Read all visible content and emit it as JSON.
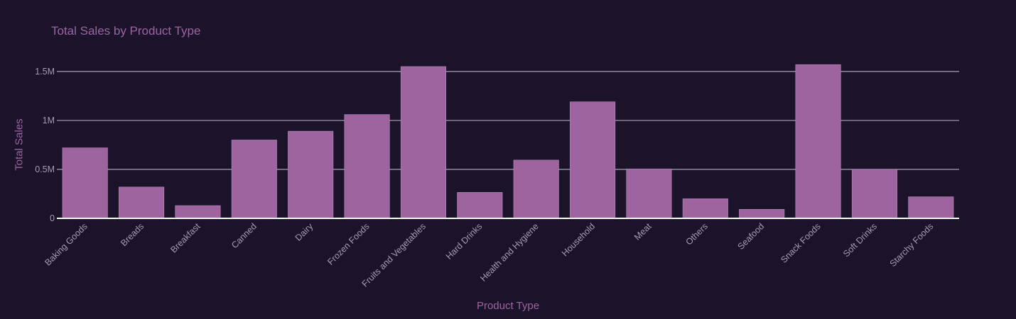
{
  "chart_data": {
    "type": "bar",
    "title": "Total Sales by Product Type",
    "xlabel": "Product Type",
    "ylabel": "Total Sales",
    "categories": [
      "Baking Goods",
      "Breads",
      "Breakfast",
      "Canned",
      "Dairy",
      "Frozen Foods",
      "Fruits and Vegetables",
      "Hard Drinks",
      "Health and Hygiene",
      "Household",
      "Meat",
      "Others",
      "Seafood",
      "Snack Foods",
      "Soft Drinks",
      "Starchy Foods"
    ],
    "values": [
      720000,
      320000,
      130000,
      800000,
      890000,
      1060000,
      1550000,
      265000,
      595000,
      1190000,
      505000,
      200000,
      92000,
      1570000,
      500000,
      220000
    ],
    "ylim": [
      0,
      1600000
    ],
    "yticks": [
      0,
      500000,
      1000000,
      1500000
    ],
    "yticklabels": [
      "0",
      "0.5M",
      "1M",
      "1.5M"
    ],
    "grid": true,
    "bar_color": "#9d64a0",
    "background": "#1a1329"
  }
}
